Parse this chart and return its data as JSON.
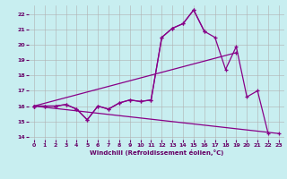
{
  "background_color": "#c8eef0",
  "grid_color": "#b0b0b0",
  "line_color": "#880088",
  "xlim": [
    -0.5,
    23.5
  ],
  "ylim": [
    13.8,
    22.6
  ],
  "xlabel": "Windchill (Refroidissement éolien,°C)",
  "yticks": [
    14,
    15,
    16,
    17,
    18,
    19,
    20,
    21,
    22
  ],
  "xticks": [
    0,
    1,
    2,
    3,
    4,
    5,
    6,
    7,
    8,
    9,
    10,
    11,
    12,
    13,
    14,
    15,
    16,
    17,
    18,
    19,
    20,
    21,
    22,
    23
  ],
  "series": [
    {
      "x": [
        0,
        1,
        2,
        3,
        4,
        5,
        6,
        7,
        8,
        9,
        10,
        11,
        12,
        13,
        14,
        15,
        16,
        17,
        18,
        19,
        20,
        21,
        22
      ],
      "y": [
        16.0,
        16.0,
        16.0,
        16.1,
        15.8,
        15.1,
        16.0,
        15.8,
        16.2,
        16.4,
        16.3,
        16.4,
        20.5,
        21.1,
        21.4,
        22.3,
        20.9,
        20.5,
        18.4,
        19.9,
        16.6,
        17.0,
        14.2
      ]
    },
    {
      "x": [
        0,
        1,
        2,
        3,
        4,
        5,
        6,
        7,
        8,
        9,
        10,
        11,
        12,
        13,
        14,
        15,
        16
      ],
      "y": [
        16.0,
        16.0,
        16.0,
        16.1,
        15.8,
        15.1,
        16.0,
        15.8,
        16.2,
        16.4,
        16.3,
        16.4,
        20.5,
        21.1,
        21.4,
        22.3,
        20.9
      ]
    },
    {
      "x": [
        0,
        19
      ],
      "y": [
        16.0,
        19.5
      ]
    },
    {
      "x": [
        0,
        23
      ],
      "y": [
        16.0,
        14.2
      ]
    }
  ]
}
